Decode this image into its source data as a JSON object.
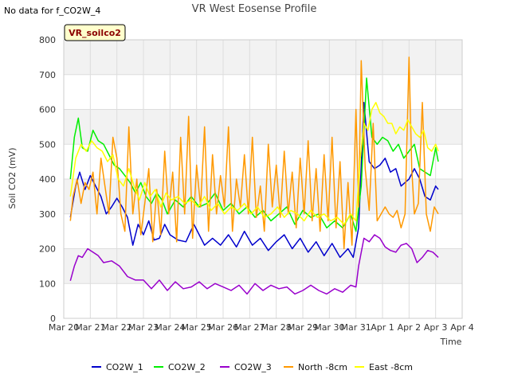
{
  "corner_note": "No data for f_CO2W_4",
  "badge_label": "VR_soilco2",
  "chart_data": {
    "type": "line",
    "title": "VR West Eosense Profile",
    "xlabel": "Time",
    "ylabel": "Soil CO2 (mV)",
    "ylim": [
      0,
      800
    ],
    "yticks": [
      0,
      100,
      200,
      300,
      400,
      500,
      600,
      700,
      800
    ],
    "xlim": [
      0,
      15
    ],
    "xticks": [
      {
        "x": 0,
        "label": "Mar 20"
      },
      {
        "x": 1,
        "label": "Mar 21"
      },
      {
        "x": 2,
        "label": "Mar 22"
      },
      {
        "x": 3,
        "label": "Mar 23"
      },
      {
        "x": 4,
        "label": "Mar 24"
      },
      {
        "x": 5,
        "label": "Mar 25"
      },
      {
        "x": 6,
        "label": "Mar 26"
      },
      {
        "x": 7,
        "label": "Mar 27"
      },
      {
        "x": 8,
        "label": "Mar 28"
      },
      {
        "x": 9,
        "label": "Mar 29"
      },
      {
        "x": 10,
        "label": "Mar 30"
      },
      {
        "x": 11,
        "label": "Mar 31"
      },
      {
        "x": 12,
        "label": "Apr 1"
      },
      {
        "x": 13,
        "label": "Apr 2"
      },
      {
        "x": 14,
        "label": "Apr 3"
      },
      {
        "x": 15,
        "label": "Apr 4"
      }
    ],
    "grid": true,
    "legend_position": "bottom",
    "x_unit_note": "x values are days from Mar 20 00:00",
    "series": [
      {
        "name": "CO2W_1",
        "color": "#0000cc",
        "x": [
          0.25,
          0.45,
          0.6,
          0.8,
          1.0,
          1.2,
          1.4,
          1.6,
          1.8,
          2.0,
          2.2,
          2.4,
          2.6,
          2.8,
          3.0,
          3.2,
          3.4,
          3.6,
          3.8,
          4.0,
          4.3,
          4.6,
          4.9,
          5.1,
          5.3,
          5.6,
          5.9,
          6.2,
          6.5,
          6.8,
          7.1,
          7.4,
          7.7,
          8.0,
          8.3,
          8.6,
          8.9,
          9.2,
          9.5,
          9.8,
          10.1,
          10.4,
          10.7,
          10.9,
          11.1,
          11.3,
          11.5,
          11.7,
          11.9,
          12.1,
          12.3,
          12.5,
          12.7,
          13.0,
          13.2,
          13.4,
          13.6,
          13.8,
          14.0,
          14.1
        ],
        "y": [
          290,
          380,
          420,
          370,
          410,
          380,
          350,
          300,
          320,
          345,
          320,
          290,
          210,
          270,
          240,
          280,
          225,
          230,
          270,
          240,
          225,
          220,
          270,
          240,
          210,
          230,
          210,
          240,
          205,
          250,
          210,
          230,
          195,
          220,
          240,
          200,
          230,
          190,
          220,
          180,
          215,
          175,
          200,
          175,
          260,
          620,
          450,
          430,
          440,
          460,
          420,
          430,
          380,
          400,
          430,
          400,
          350,
          340,
          380,
          370
        ]
      },
      {
        "name": "CO2W_2",
        "color": "#00ee00",
        "x": [
          0.25,
          0.4,
          0.55,
          0.7,
          0.9,
          1.1,
          1.3,
          1.5,
          1.7,
          1.9,
          2.1,
          2.3,
          2.5,
          2.7,
          2.9,
          3.1,
          3.3,
          3.5,
          3.7,
          3.9,
          4.2,
          4.5,
          4.8,
          5.1,
          5.4,
          5.7,
          6.0,
          6.3,
          6.6,
          6.9,
          7.2,
          7.5,
          7.8,
          8.1,
          8.4,
          8.7,
          9.0,
          9.3,
          9.6,
          9.9,
          10.2,
          10.5,
          10.8,
          11.0,
          11.2,
          11.4,
          11.6,
          11.8,
          12.0,
          12.2,
          12.4,
          12.6,
          12.8,
          13.0,
          13.2,
          13.4,
          13.6,
          13.8,
          14.0,
          14.1
        ],
        "y": [
          400,
          520,
          575,
          490,
          480,
          540,
          510,
          500,
          470,
          440,
          430,
          410,
          390,
          360,
          390,
          350,
          330,
          360,
          340,
          300,
          340,
          320,
          350,
          320,
          330,
          360,
          310,
          330,
          300,
          320,
          290,
          310,
          280,
          300,
          320,
          270,
          310,
          290,
          300,
          260,
          280,
          260,
          300,
          250,
          380,
          690,
          520,
          500,
          520,
          510,
          480,
          500,
          460,
          480,
          500,
          430,
          420,
          410,
          490,
          450
        ]
      },
      {
        "name": "CO2W_3",
        "color": "#9900cc",
        "x": [
          0.25,
          0.4,
          0.55,
          0.7,
          0.9,
          1.1,
          1.3,
          1.5,
          1.8,
          2.1,
          2.4,
          2.7,
          3.0,
          3.3,
          3.6,
          3.9,
          4.2,
          4.5,
          4.8,
          5.1,
          5.4,
          5.7,
          6.0,
          6.3,
          6.6,
          6.9,
          7.2,
          7.5,
          7.8,
          8.1,
          8.4,
          8.7,
          9.0,
          9.3,
          9.6,
          9.9,
          10.2,
          10.5,
          10.8,
          11.0,
          11.1,
          11.3,
          11.5,
          11.7,
          11.9,
          12.1,
          12.3,
          12.5,
          12.7,
          12.9,
          13.1,
          13.3,
          13.5,
          13.7,
          13.9,
          14.1
        ],
        "y": [
          108,
          150,
          180,
          175,
          200,
          190,
          180,
          160,
          165,
          150,
          120,
          110,
          110,
          85,
          110,
          80,
          105,
          85,
          90,
          105,
          85,
          100,
          90,
          80,
          95,
          70,
          100,
          80,
          95,
          85,
          90,
          70,
          80,
          95,
          80,
          70,
          85,
          75,
          95,
          90,
          150,
          230,
          220,
          240,
          230,
          205,
          195,
          190,
          210,
          215,
          200,
          160,
          175,
          195,
          190,
          175
        ]
      },
      {
        "name": "North -8cm",
        "color": "#ff9900",
        "x": [
          0.25,
          0.35,
          0.5,
          0.65,
          0.8,
          0.95,
          1.1,
          1.25,
          1.4,
          1.55,
          1.7,
          1.85,
          2.0,
          2.15,
          2.3,
          2.45,
          2.6,
          2.75,
          2.9,
          3.05,
          3.2,
          3.35,
          3.5,
          3.65,
          3.8,
          3.95,
          4.1,
          4.25,
          4.4,
          4.55,
          4.7,
          4.85,
          5.0,
          5.15,
          5.3,
          5.45,
          5.6,
          5.75,
          5.9,
          6.05,
          6.2,
          6.35,
          6.5,
          6.65,
          6.8,
          6.95,
          7.1,
          7.25,
          7.4,
          7.55,
          7.7,
          7.85,
          8.0,
          8.15,
          8.3,
          8.45,
          8.6,
          8.75,
          8.9,
          9.05,
          9.2,
          9.35,
          9.5,
          9.65,
          9.8,
          9.95,
          10.1,
          10.25,
          10.4,
          10.55,
          10.7,
          10.85,
          11.0,
          11.1,
          11.2,
          11.35,
          11.5,
          11.65,
          11.8,
          11.95,
          12.1,
          12.25,
          12.4,
          12.55,
          12.7,
          12.85,
          13.0,
          13.1,
          13.2,
          13.35,
          13.5,
          13.65,
          13.8,
          13.95,
          14.1
        ],
        "y": [
          280,
          350,
          400,
          330,
          390,
          370,
          420,
          300,
          460,
          380,
          300,
          520,
          460,
          300,
          250,
          550,
          300,
          400,
          240,
          330,
          430,
          220,
          370,
          240,
          480,
          300,
          420,
          220,
          520,
          300,
          580,
          230,
          440,
          320,
          550,
          250,
          470,
          300,
          410,
          320,
          550,
          250,
          400,
          320,
          470,
          300,
          520,
          290,
          380,
          250,
          500,
          320,
          440,
          290,
          480,
          300,
          420,
          260,
          460,
          300,
          510,
          280,
          430,
          250,
          470,
          280,
          520,
          260,
          450,
          200,
          390,
          210,
          600,
          320,
          740,
          430,
          310,
          560,
          280,
          300,
          320,
          300,
          290,
          310,
          260,
          300,
          750,
          430,
          300,
          330,
          620,
          300,
          250,
          320,
          300
        ]
      },
      {
        "name": "East -8cm",
        "color": "#ffff00",
        "x": [
          0.25,
          0.45,
          0.65,
          0.85,
          1.05,
          1.25,
          1.45,
          1.65,
          1.85,
          2.05,
          2.25,
          2.45,
          2.65,
          2.85,
          3.05,
          3.25,
          3.45,
          3.65,
          3.85,
          4.05,
          4.3,
          4.55,
          4.8,
          5.05,
          5.3,
          5.55,
          5.8,
          6.05,
          6.3,
          6.55,
          6.8,
          7.05,
          7.3,
          7.55,
          7.8,
          8.05,
          8.3,
          8.55,
          8.8,
          9.05,
          9.3,
          9.55,
          9.8,
          10.05,
          10.3,
          10.55,
          10.8,
          11.0,
          11.15,
          11.3,
          11.45,
          11.6,
          11.75,
          11.9,
          12.05,
          12.2,
          12.35,
          12.5,
          12.65,
          12.8,
          12.95,
          13.1,
          13.25,
          13.4,
          13.55,
          13.7,
          13.85,
          14.0,
          14.1
        ],
        "y": [
          350,
          460,
          500,
          480,
          510,
          490,
          480,
          450,
          470,
          400,
          380,
          430,
          380,
          340,
          390,
          350,
          370,
          320,
          360,
          340,
          350,
          330,
          340,
          320,
          350,
          310,
          330,
          300,
          320,
          310,
          330,
          300,
          320,
          290,
          300,
          320,
          290,
          310,
          300,
          280,
          310,
          290,
          300,
          280,
          290,
          270,
          300,
          280,
          450,
          560,
          540,
          600,
          620,
          590,
          580,
          560,
          560,
          530,
          550,
          540,
          570,
          550,
          530,
          520,
          540,
          490,
          480,
          500,
          480
        ]
      }
    ]
  }
}
